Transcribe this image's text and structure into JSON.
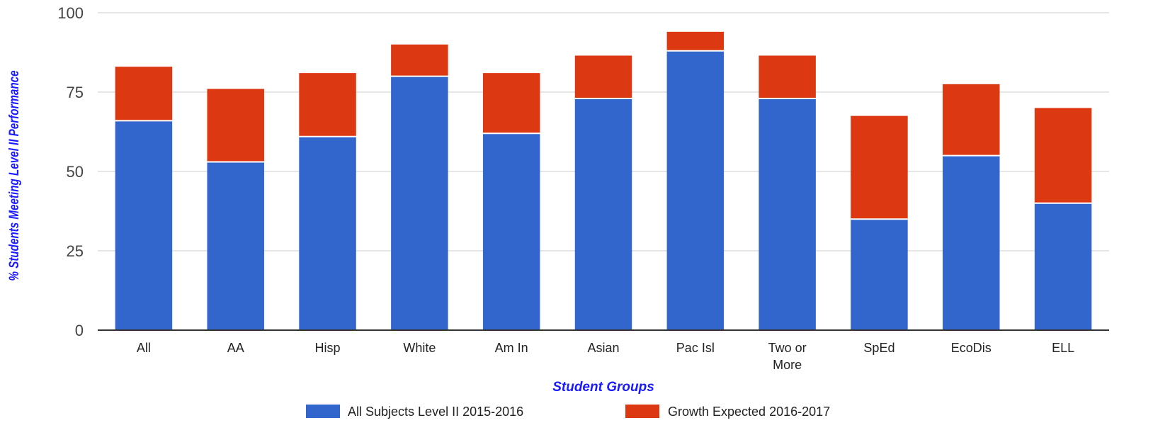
{
  "chart_data": {
    "type": "bar",
    "stacked": true,
    "categories": [
      "All",
      "AA",
      "Hisp",
      "White",
      "Am In",
      "Asian",
      "Pac Isl",
      "Two or More",
      "SpEd",
      "EcoDis",
      "ELL"
    ],
    "series": [
      {
        "name": "All Subjects Level II 2015-2016",
        "color": "#3366cc",
        "values": [
          66,
          53,
          61,
          80,
          62,
          73,
          88,
          73,
          35,
          55,
          40
        ]
      },
      {
        "name": "Growth Expected 2016-2017",
        "color": "#dc3912",
        "values": [
          17,
          23,
          20,
          10,
          19,
          13.5,
          6,
          13.5,
          32.5,
          22.5,
          30
        ]
      }
    ],
    "xlabel": "Student Groups",
    "ylabel": "% Students Meeting Level II Performance",
    "ylim": [
      0,
      100
    ],
    "yticks": [
      0,
      25,
      50,
      75,
      100
    ],
    "grid": true,
    "legend": "bottom"
  }
}
